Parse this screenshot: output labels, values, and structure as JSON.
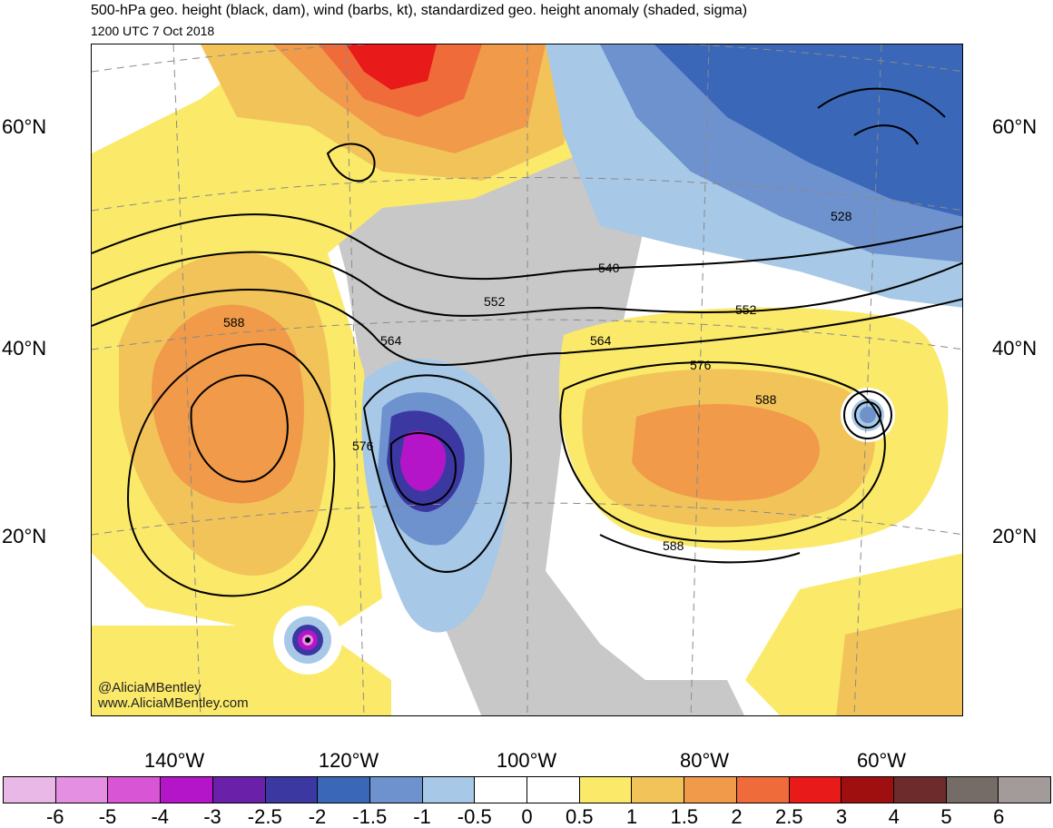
{
  "header": {
    "title": "500-hPa geo. height (black, dam), wind (barbs, kt), standardized geo. height anomaly (shaded, sigma)",
    "valid_time": "1200 UTC 7 Oct 2018"
  },
  "map": {
    "lat_labels_left": [
      "60°N",
      "40°N",
      "20°N"
    ],
    "lat_labels_right": [
      "60°N",
      "40°N",
      "20°N"
    ],
    "lon_labels": [
      "140°W",
      "120°W",
      "100°W",
      "80°W",
      "60°W"
    ],
    "contour_labels": [
      "588",
      "564",
      "552",
      "540",
      "528",
      "552",
      "564",
      "576",
      "588",
      "576",
      "588"
    ],
    "credits": [
      "@AliciaMBentley",
      "www.AliciaMBentley.com"
    ]
  },
  "colorbar": {
    "colors": [
      "#e9b8e6",
      "#e58fe2",
      "#d856d6",
      "#b515c9",
      "#6a20a8",
      "#3b38a2",
      "#3a67b8",
      "#6d92ce",
      "#a7c8e6",
      "#ffffff",
      "#ffffff",
      "#fbe96a",
      "#f2c359",
      "#f09a4a",
      "#ef6b3a",
      "#e81a1a",
      "#a00f0f",
      "#6e2b2b",
      "#756b67",
      "#a39a9a"
    ],
    "labels": [
      "-6",
      "-5",
      "-4",
      "-3",
      "-2.5",
      "-2",
      "-1.5",
      "-1",
      "-0.5",
      "0",
      "0.5",
      "1",
      "1.5",
      "2",
      "2.5",
      "3",
      "4",
      "5",
      "6"
    ]
  }
}
